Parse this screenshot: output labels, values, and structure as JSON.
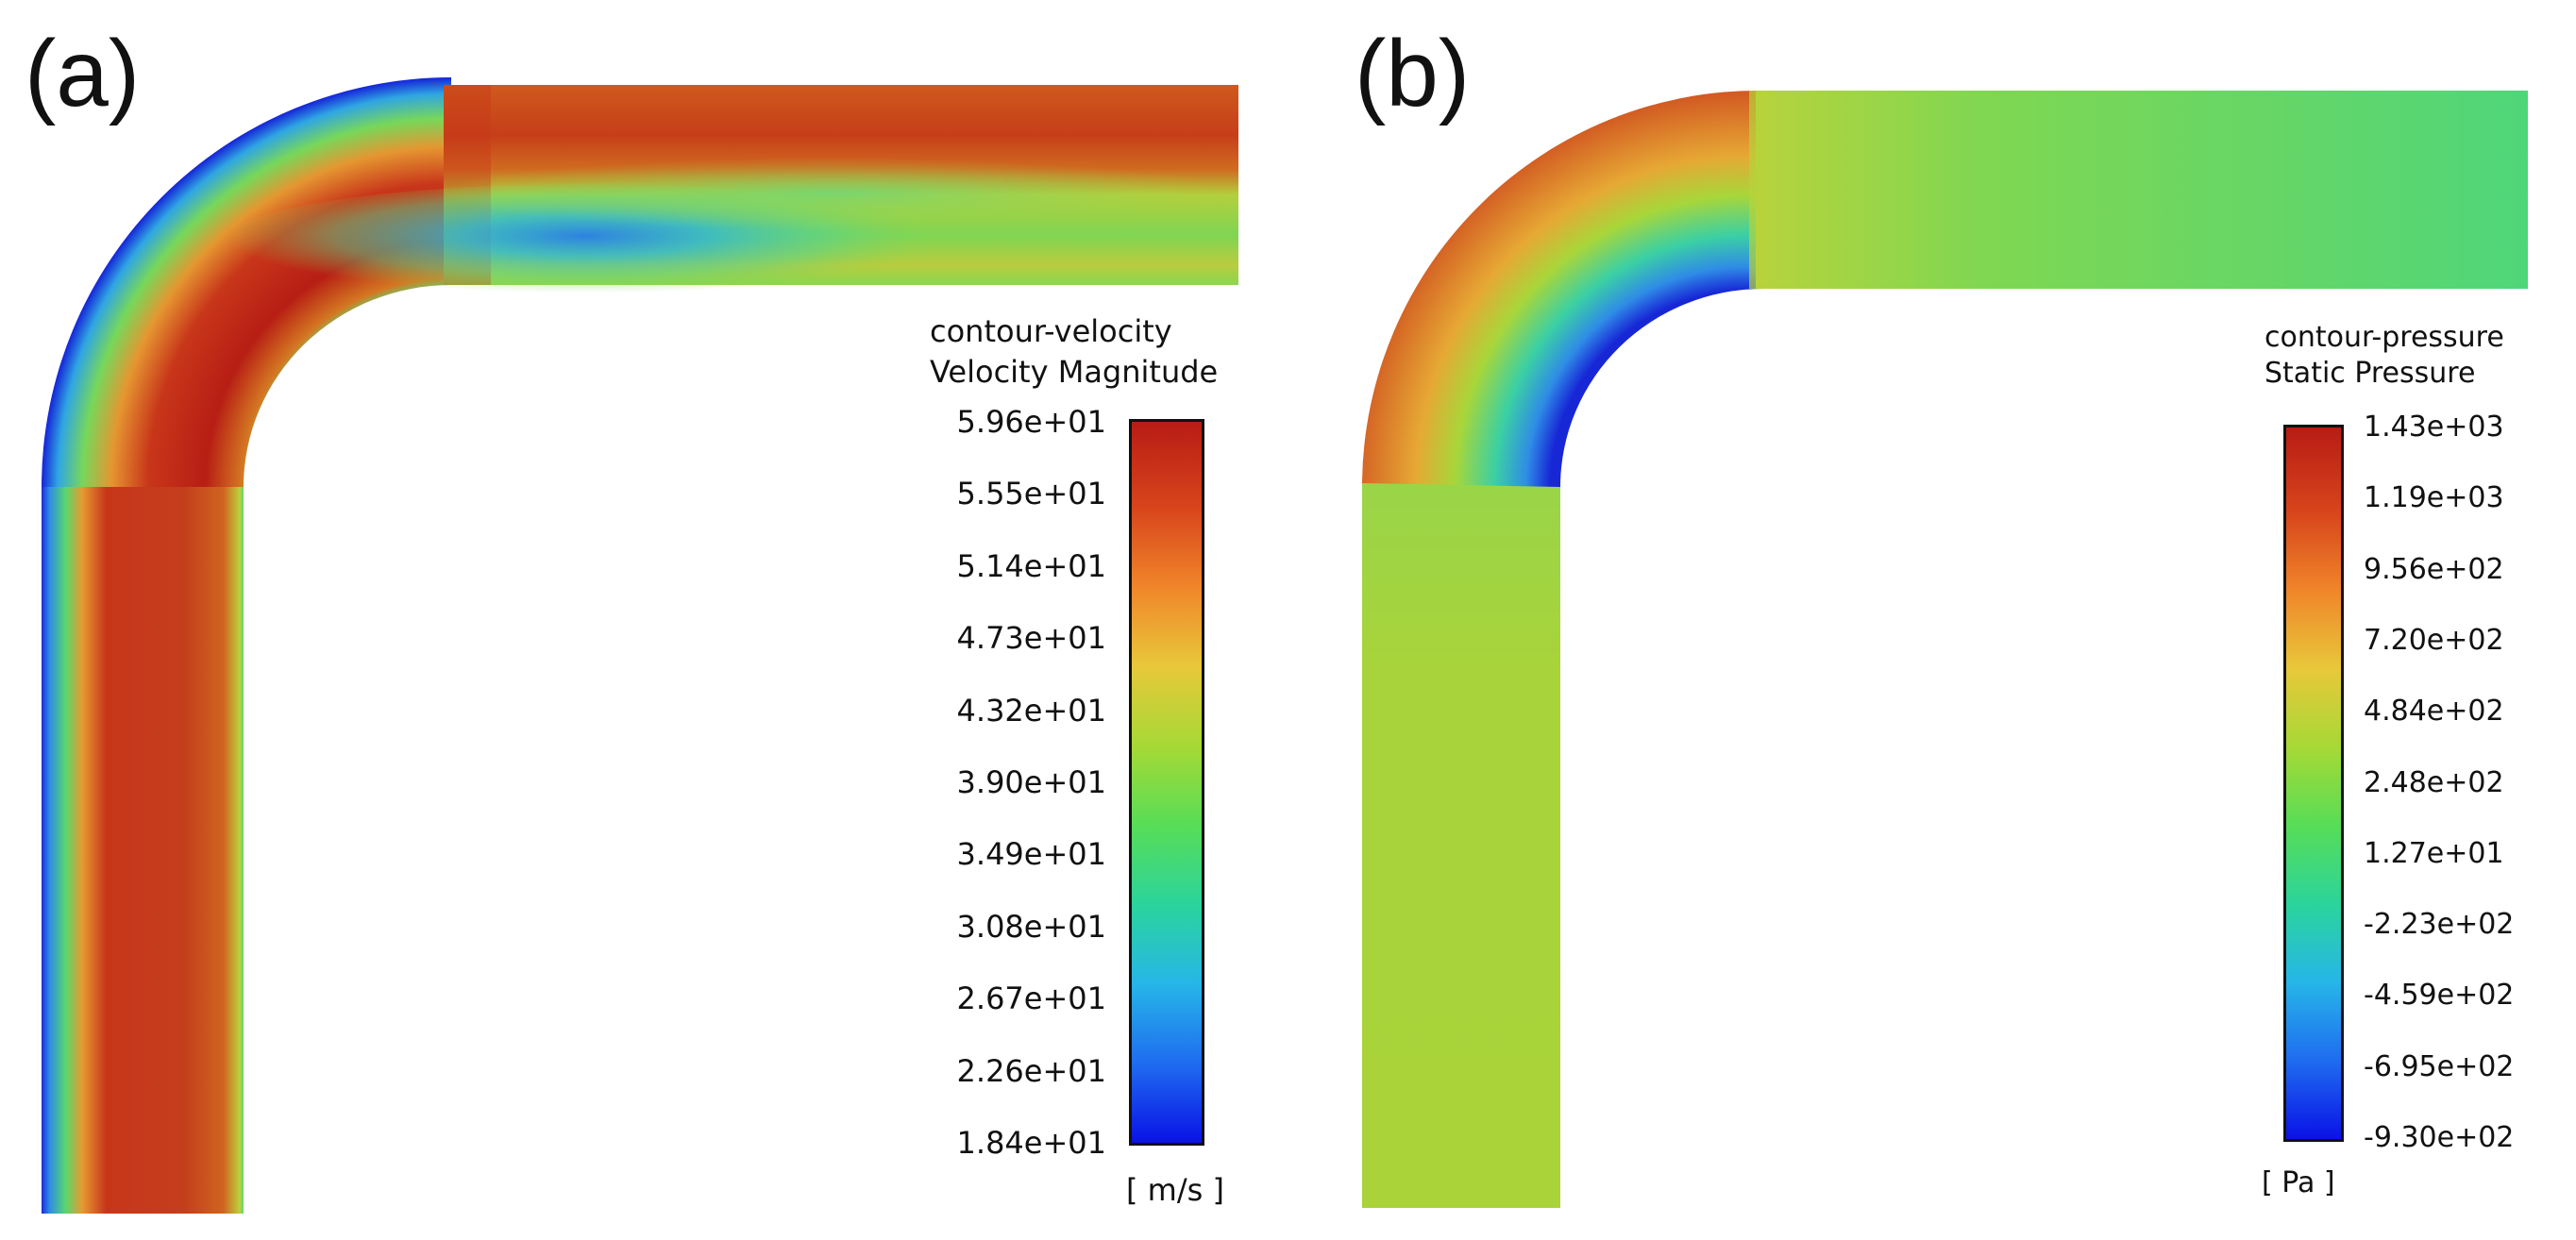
{
  "panels": [
    {
      "letter": "(a)",
      "legend": {
        "title_line1": "contour-velocity",
        "title_line2": "Velocity Magnitude",
        "ticks": [
          "5.96e+01",
          "5.55e+01",
          "5.14e+01",
          "4.73e+01",
          "4.32e+01",
          "3.90e+01",
          "3.49e+01",
          "3.08e+01",
          "2.67e+01",
          "2.26e+01",
          "1.84e+01"
        ],
        "unit": "[ m/s ]",
        "max": 59.6,
        "min": 18.4
      }
    },
    {
      "letter": "(b)",
      "legend": {
        "title_line1": "contour-pressure",
        "title_line2": "Static Pressure",
        "ticks": [
          "1.43e+03",
          "1.19e+03",
          "9.56e+02",
          "7.20e+02",
          "4.84e+02",
          "2.48e+02",
          "1.27e+01",
          "-2.23e+02",
          "-4.59e+02",
          "-6.95e+02",
          "-9.30e+02"
        ],
        "unit": "[ Pa ]",
        "max": 1430,
        "min": -930
      }
    }
  ],
  "colormap": {
    "stops": [
      "#0a12e6",
      "#1f6cf0",
      "#26b6e8",
      "#2bd49c",
      "#57dd57",
      "#a6d935",
      "#e8c83a",
      "#f0862a",
      "#d8451c",
      "#b81c14"
    ]
  }
}
